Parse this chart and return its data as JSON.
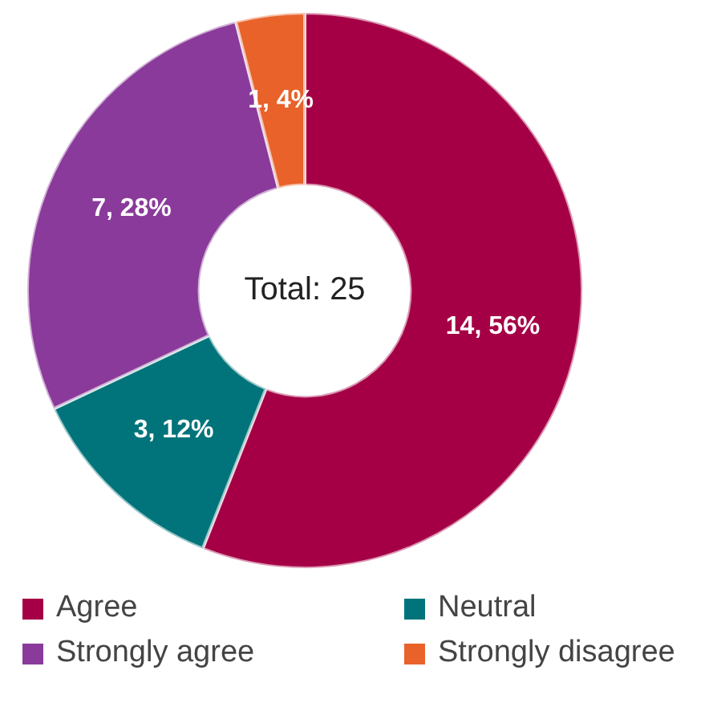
{
  "chart_data": {
    "type": "donut",
    "categories": [
      "Agree",
      "Neutral",
      "Strongly agree",
      "Strongly disagree"
    ],
    "values": [
      14,
      3,
      7,
      1
    ],
    "colors": [
      "#a50045",
      "#00747a",
      "#8a3a9a",
      "#e8622a"
    ],
    "value_labels": [
      "14, 56%",
      "3, 12%",
      "7, 28%",
      "1, 4%"
    ],
    "annotations": [
      "Total: 25"
    ],
    "legend": "bottom"
  }
}
